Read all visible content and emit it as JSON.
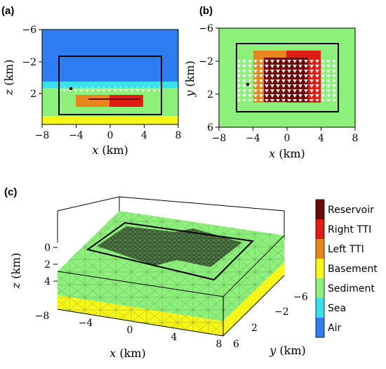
{
  "panel_a": {
    "label": "(a)",
    "x_ticks": [
      "−8",
      "−4",
      "0",
      "4",
      "8"
    ],
    "z_ticks": [
      "−6",
      "−2",
      "2"
    ],
    "x_var": "x",
    "x_unit": " (km)",
    "z_var": "z",
    "z_unit": " (km)"
  },
  "panel_b": {
    "label": "(b)",
    "x_ticks": [
      "−8",
      "−4",
      "0",
      "4",
      "8"
    ],
    "y_ticks": [
      "−6",
      "−2",
      "2",
      "6"
    ],
    "x_var": "x",
    "x_unit": " (km)",
    "y_var": "y",
    "y_unit": " (km)"
  },
  "panel_c": {
    "label": "(c)",
    "x_ticks": [
      "−8",
      "−4",
      "0",
      "4",
      "8"
    ],
    "y_ticks": [
      "−6",
      "−2",
      "2",
      "6"
    ],
    "z_ticks": [
      "0",
      "2",
      "4"
    ],
    "x_var": "x",
    "x_unit": " (km)",
    "y_var": "y",
    "y_unit": " (km)",
    "z_var": "z",
    "z_unit": " (km)"
  },
  "legend": [
    {
      "label": "Reservoir",
      "color": "#6b0b0b"
    },
    {
      "label": "Right TTI",
      "color": "#e01d14"
    },
    {
      "label": "Left TTI",
      "color": "#e8861d"
    },
    {
      "label": "Basement",
      "color": "#f6f619"
    },
    {
      "label": "Sediment",
      "color": "#8cf07a"
    },
    {
      "label": "Sea",
      "color": "#38e0ec"
    },
    {
      "label": "Air",
      "color": "#2d7cf2"
    }
  ],
  "colors": {
    "air": "#2d7cf2",
    "sea": "#38e0ec",
    "sediment": "#8cf07a",
    "basement": "#f6f619",
    "left_tti": "#e8861d",
    "right_tti": "#e01d14",
    "reservoir": "#6b0b0b"
  }
}
